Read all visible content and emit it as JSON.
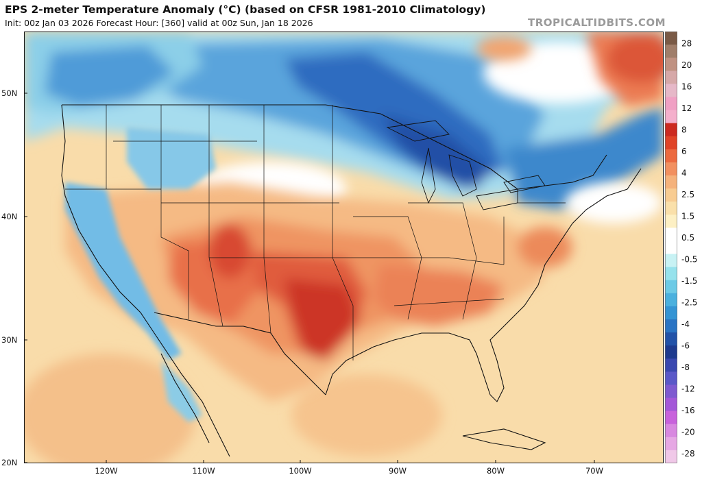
{
  "header": {
    "title": "EPS 2-meter Temperature Anomaly (°C) (based on CFSR 1981-2010 Climatology)",
    "subtitle": "Init: 00z Jan 03 2026   Forecast Hour: [360]   valid at 00z Sun, Jan 18 2026",
    "brand": "TROPICALTIDBITS.COM"
  },
  "map": {
    "latitude_labels": [
      "50N",
      "40N",
      "30N",
      "20N"
    ],
    "longitude_labels": [
      "120W",
      "110W",
      "100W",
      "90W",
      "80W",
      "70W"
    ]
  },
  "colorbar": {
    "labels": [
      "28",
      "20",
      "16",
      "12",
      "8",
      "6",
      "4",
      "2.5",
      "1.5",
      "0.5",
      "-0.5",
      "-1.5",
      "-2.5",
      "-4",
      "-6",
      "-8",
      "-12",
      "-16",
      "-20",
      "-28"
    ],
    "colors": [
      "#7a5a46",
      "#a07e6a",
      "#c09282",
      "#d6a8a8",
      "#e6b8c8",
      "#f0a0c4",
      "#f4b0cc",
      "#cc2a20",
      "#e04428",
      "#ec6a40",
      "#f29060",
      "#f5b27c",
      "#f8cc92",
      "#fae0aa",
      "#fdf0c4",
      "#ffffff",
      "#ffffff",
      "#c8f2f4",
      "#96e2ec",
      "#6ccae6",
      "#4ab0de",
      "#3494d4",
      "#2a74c4",
      "#2252a8",
      "#1e3a8e",
      "#3a48b0",
      "#5a58c8",
      "#7e5ad0",
      "#a458d8",
      "#c862dc",
      "#d888e0",
      "#e6a8e4",
      "#f0c8e8"
    ]
  },
  "colors": {
    "ocean_warm": "#f8dcaa",
    "land_warm": "#f3b07a",
    "hot": "#d94430",
    "very_hot": "#c42a1e",
    "cold": "#3d86cc",
    "very_cold": "#2150a8",
    "cool": "#9ad6ea",
    "neutral": "#ffffff",
    "border": "#111111"
  }
}
